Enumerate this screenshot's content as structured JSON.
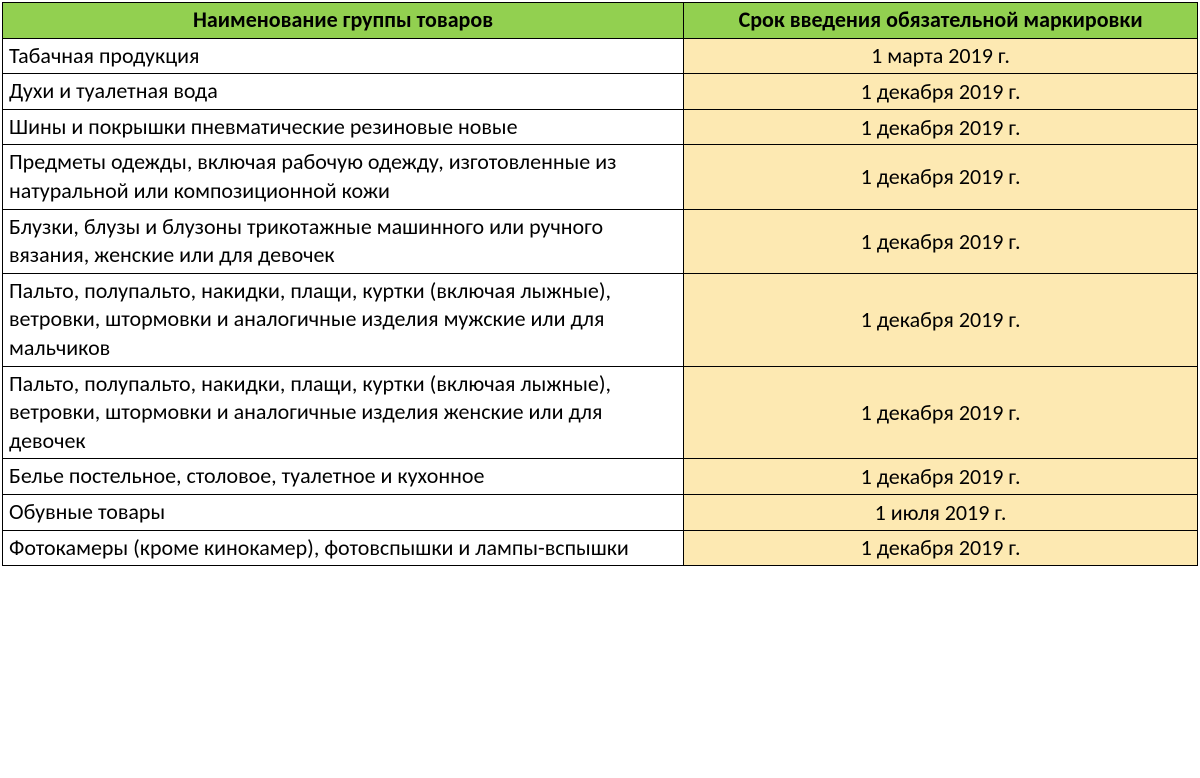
{
  "table": {
    "header_bg": "#92d050",
    "date_bg": "#fde9b2",
    "name_bg": "#ffffff",
    "border_color": "#000000",
    "font_family": "Calibri, Arial, sans-serif",
    "header_fontsize": 22,
    "cell_fontsize": 22,
    "col_name_width_pct": 57,
    "col_date_width_pct": 43,
    "columns": [
      "Наименование группы товаров",
      "Срок введения обязательной маркировки"
    ],
    "rows": [
      {
        "name": "Табачная продукция",
        "date": "1 марта 2019 г."
      },
      {
        "name": "Духи и туалетная вода",
        "date": "1 декабря 2019 г."
      },
      {
        "name": "Шины и покрышки пневматические резиновые новые",
        "date": "1 декабря 2019 г."
      },
      {
        "name": "Предметы одежды, включая рабочую одежду, изготовленные из натуральной или композиционной кожи",
        "date": "1 декабря 2019 г."
      },
      {
        "name": "Блузки, блузы и блузоны трикотажные машинного или ручного вязания, женские или для девочек",
        "date": "1 декабря 2019 г."
      },
      {
        "name": "Пальто, полупальто, накидки, плащи, куртки (включая лыжные), ветровки, штормовки и аналогичные изделия мужские или для мальчиков",
        "date": "1 декабря 2019 г."
      },
      {
        "name": "Пальто, полупальто, накидки, плащи, куртки (включая лыжные), ветровки, штормовки и аналогичные изделия женские или для девочек",
        "date": "1 декабря 2019 г."
      },
      {
        "name": "Белье постельное, столовое, туалетное и кухонное",
        "date": "1 декабря 2019 г."
      },
      {
        "name": "Обувные товары",
        "date": "1 июля 2019 г."
      },
      {
        "name": "Фотокамеры (кроме кинокамер), фотовспышки и лампы-вспышки",
        "date": "1 декабря 2019 г."
      }
    ]
  }
}
